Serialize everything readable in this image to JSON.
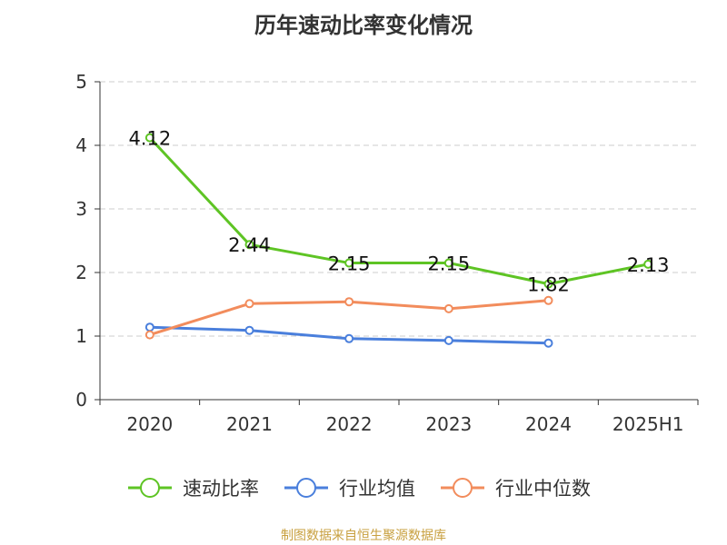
{
  "title": "历年速动比率变化情况",
  "source": "制图数据来自恒生聚源数据库",
  "chart_data": {
    "type": "line",
    "title": "历年速动比率变化情况",
    "categories": [
      "2020",
      "2021",
      "2022",
      "2023",
      "2024",
      "2025H1"
    ],
    "ylim": [
      0,
      5
    ],
    "y_ticks": [
      0,
      1,
      2,
      3,
      4,
      5
    ],
    "grid": true,
    "legend_position": "bottom",
    "series": [
      {
        "name": "速动比率",
        "color": "#5ec424",
        "show_labels": true,
        "labels": [
          "4.12",
          "2.44",
          "2.15",
          "2.15",
          "1.82",
          "2.13"
        ],
        "values": [
          4.12,
          2.44,
          2.15,
          2.15,
          1.82,
          2.13
        ]
      },
      {
        "name": "行业均值",
        "color": "#4a7fdc",
        "show_labels": false,
        "values": [
          1.14,
          1.09,
          0.96,
          0.93,
          0.89,
          null
        ]
      },
      {
        "name": "行业中位数",
        "color": "#f28c5c",
        "show_labels": false,
        "values": [
          1.02,
          1.51,
          1.54,
          1.43,
          1.56,
          null
        ]
      }
    ]
  }
}
